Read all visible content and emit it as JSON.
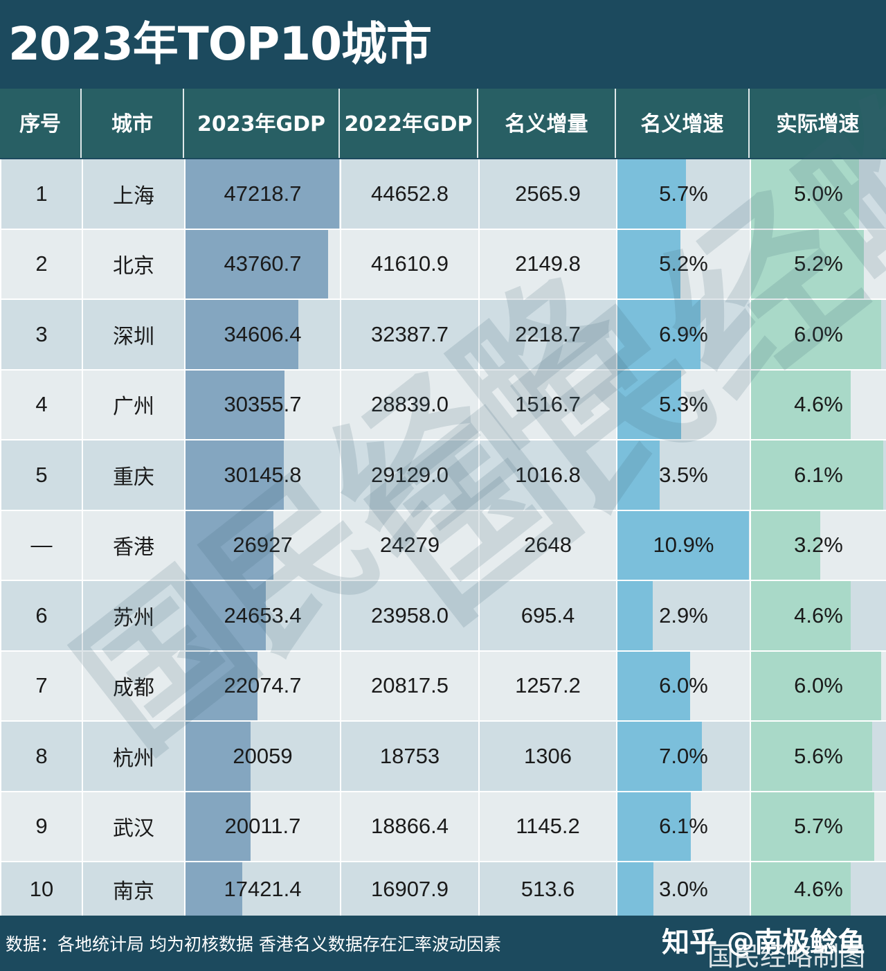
{
  "title": "2023年TOP10城市",
  "headers": [
    "序号",
    "城市",
    "2023年GDP",
    "2022年GDP",
    "名义增量",
    "名义增速",
    "实际增速"
  ],
  "rows": [
    {
      "rank": "1",
      "city": "上海",
      "gdp2023": "47218.7",
      "gdp2022": "44652.8",
      "increase": "2565.9",
      "nominal_growth": "5.7%",
      "real_growth": "5.0%"
    },
    {
      "rank": "2",
      "city": "北京",
      "gdp2023": "43760.7",
      "gdp2022": "41610.9",
      "increase": "2149.8",
      "nominal_growth": "5.2%",
      "real_growth": "5.2%"
    },
    {
      "rank": "3",
      "city": "深圳",
      "gdp2023": "34606.4",
      "gdp2022": "32387.7",
      "increase": "2218.7",
      "nominal_growth": "6.9%",
      "real_growth": "6.0%"
    },
    {
      "rank": "4",
      "city": "广州",
      "gdp2023": "30355.7",
      "gdp2022": "28839.0",
      "increase": "1516.7",
      "nominal_growth": "5.3%",
      "real_growth": "4.6%"
    },
    {
      "rank": "5",
      "city": "重庆",
      "gdp2023": "30145.8",
      "gdp2022": "29129.0",
      "increase": "1016.8",
      "nominal_growth": "3.5%",
      "real_growth": "6.1%"
    },
    {
      "rank": "—",
      "city": "香港",
      "gdp2023": "26927",
      "gdp2022": "24279",
      "increase": "2648",
      "nominal_growth": "10.9%",
      "real_growth": "3.2%"
    },
    {
      "rank": "6",
      "city": "苏州",
      "gdp2023": "24653.4",
      "gdp2022": "23958.0",
      "increase": "695.4",
      "nominal_growth": "2.9%",
      "real_growth": "4.6%"
    },
    {
      "rank": "7",
      "city": "成都",
      "gdp2023": "22074.7",
      "gdp2022": "20817.5",
      "increase": "1257.2",
      "nominal_growth": "6.0%",
      "real_growth": "6.0%"
    },
    {
      "rank": "8",
      "city": "杭州",
      "gdp2023": "20059",
      "gdp2022": "18753",
      "increase": "1306",
      "nominal_growth": "7.0%",
      "real_growth": "5.6%"
    },
    {
      "rank": "9",
      "city": "武汉",
      "gdp2023": "20011.7",
      "gdp2022": "18866.4",
      "increase": "1145.2",
      "nominal_growth": "6.1%",
      "real_growth": "5.7%"
    },
    {
      "rank": "10",
      "city": "南京",
      "gdp2023": "17421.4",
      "gdp2022": "16907.9",
      "increase": "513.6",
      "nominal_growth": "3.0%",
      "real_growth": "4.6%"
    }
  ],
  "footer": {
    "source": "数据：各地统计局  均为初核数据 香港名义数据存在汇率波动因素",
    "credit": "知乎 @南极鲶鱼",
    "credit_overlay": "国民经略制图"
  },
  "watermark": "国民经略",
  "colors": {
    "title_bg": "#1c4a5e",
    "header_bg": "#285f64",
    "row_odd": "#cfdde3",
    "row_even": "#e6ecee",
    "gdp_bar": "#84a6c0",
    "nominal_bar": "#7bbfdb",
    "real_bar": "#a9d9c8"
  },
  "chart_data": {
    "type": "table",
    "title": "2023年TOP10城市",
    "columns": [
      "序号",
      "城市",
      "2023年GDP",
      "2022年GDP",
      "名义增量",
      "名义增速",
      "实际增速"
    ],
    "categories": [
      "上海",
      "北京",
      "深圳",
      "广州",
      "重庆",
      "香港",
      "苏州",
      "成都",
      "杭州",
      "武汉",
      "南京"
    ],
    "series": [
      {
        "name": "2023年GDP",
        "values": [
          47218.7,
          43760.7,
          34606.4,
          30355.7,
          30145.8,
          26927,
          24653.4,
          22074.7,
          20059,
          20011.7,
          17421.4
        ],
        "rendered_as": "data-bar"
      },
      {
        "name": "2022年GDP",
        "values": [
          44652.8,
          41610.9,
          32387.7,
          28839.0,
          29129.0,
          24279,
          23958.0,
          20817.5,
          18753,
          18866.4,
          16907.9
        ]
      },
      {
        "name": "名义增量",
        "values": [
          2565.9,
          2149.8,
          2218.7,
          1516.7,
          1016.8,
          2648,
          695.4,
          1257.2,
          1306,
          1145.2,
          513.6
        ]
      },
      {
        "name": "名义增速",
        "unit": "%",
        "values": [
          5.7,
          5.2,
          6.9,
          5.3,
          3.5,
          10.9,
          2.9,
          6.0,
          7.0,
          6.1,
          3.0
        ],
        "rendered_as": "data-bar"
      },
      {
        "name": "实际增速",
        "unit": "%",
        "values": [
          5.0,
          5.2,
          6.0,
          4.6,
          6.1,
          3.2,
          4.6,
          6.0,
          5.6,
          5.7,
          4.6
        ],
        "rendered_as": "data-bar"
      }
    ],
    "ranks": [
      "1",
      "2",
      "3",
      "4",
      "5",
      "—",
      "6",
      "7",
      "8",
      "9",
      "10"
    ],
    "note": "数据：各地统计局  均为初核数据 香港名义数据存在汇率波动因素"
  }
}
